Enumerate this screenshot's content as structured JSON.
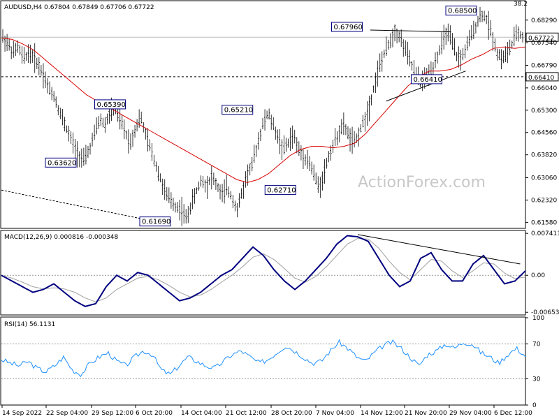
{
  "chart_data": [
    {
      "type": "candlestick",
      "title": "AUDUSD,H4  0.67804 0.67849 0.67706 0.67722",
      "corner_value": "38.2",
      "ylim": [
        0.6138,
        0.6891
      ],
      "y_ticks": [
        "0.68290",
        "0.67540",
        "0.66790",
        "0.66040",
        "0.65300",
        "0.64560",
        "0.63820",
        "0.63060",
        "0.62320",
        "0.61580"
      ],
      "y_tick_values": [
        0.6829,
        0.6754,
        0.6679,
        0.6604,
        0.653,
        0.6456,
        0.6382,
        0.6306,
        0.6232,
        0.6158
      ],
      "x_ticks": [
        "14 Sep 2022",
        "22 Sep 04:00",
        "29 Sep 12:00",
        "6 Oct 20:00",
        "14 Oct 04:00",
        "21 Oct 12:00",
        "28 Oct 20:00",
        "7 Nov 04:00",
        "14 Nov 12:00",
        "21 Nov 20:00",
        "29 Nov 04:00",
        "6 Dec 12:00"
      ],
      "current_price": "0.67722",
      "current_price_value": 0.67722,
      "level_line_value": 0.6641,
      "level_line_label": "0.66410",
      "price_labels": [
        {
          "text": "0.67960",
          "value": 0.6796
        },
        {
          "text": "0.68500",
          "value": 0.685
        },
        {
          "text": "0.65390",
          "value": 0.6539
        },
        {
          "text": "0.65210",
          "value": 0.6521
        },
        {
          "text": "0.66410",
          "value": 0.6641
        },
        {
          "text": "0.63620",
          "value": 0.6362
        },
        {
          "text": "0.62710",
          "value": 0.6271
        },
        {
          "text": "0.61690",
          "value": 0.6169
        }
      ],
      "price_path": [
        0.677,
        0.675,
        0.672,
        0.674,
        0.67,
        0.672,
        0.671,
        0.668,
        0.665,
        0.66,
        0.658,
        0.653,
        0.649,
        0.645,
        0.641,
        0.638,
        0.6362,
        0.64,
        0.645,
        0.65,
        0.648,
        0.652,
        0.6539,
        0.65,
        0.646,
        0.642,
        0.647,
        0.651,
        0.645,
        0.64,
        0.635,
        0.63,
        0.625,
        0.623,
        0.621,
        0.62,
        0.6169,
        0.622,
        0.626,
        0.63,
        0.628,
        0.631,
        0.628,
        0.625,
        0.627,
        0.624,
        0.62,
        0.626,
        0.632,
        0.635,
        0.642,
        0.648,
        0.6521,
        0.648,
        0.644,
        0.64,
        0.642,
        0.645,
        0.64,
        0.638,
        0.636,
        0.632,
        0.6271,
        0.632,
        0.638,
        0.642,
        0.646,
        0.648,
        0.644,
        0.642,
        0.646,
        0.65,
        0.655,
        0.662,
        0.668,
        0.672,
        0.676,
        0.6796,
        0.677,
        0.673,
        0.669,
        0.665,
        0.662,
        0.6641,
        0.666,
        0.67,
        0.674,
        0.679,
        0.676,
        0.671,
        0.67,
        0.674,
        0.678,
        0.682,
        0.685,
        0.683,
        0.678,
        0.672,
        0.67,
        0.672,
        0.675,
        0.679,
        0.6772
      ],
      "sma_path": [
        0.677,
        0.6765,
        0.675,
        0.673,
        0.67,
        0.667,
        0.664,
        0.661,
        0.658,
        0.656,
        0.654,
        0.652,
        0.65,
        0.648,
        0.646,
        0.644,
        0.642,
        0.64,
        0.638,
        0.636,
        0.634,
        0.632,
        0.63,
        0.629,
        0.63,
        0.632,
        0.635,
        0.638,
        0.64,
        0.641,
        0.641,
        0.6405,
        0.641,
        0.642,
        0.645,
        0.649,
        0.653,
        0.657,
        0.661,
        0.664,
        0.666,
        0.666,
        0.6665,
        0.668,
        0.67,
        0.6715,
        0.6735,
        0.674,
        0.6735,
        0.674
      ],
      "resistance_line": [
        [
          0.6796,
          0.0
        ],
        [
          0.679,
          1.0
        ]
      ],
      "support_line": [
        [
          0.656,
          0.0
        ],
        [
          0.666,
          1.0
        ]
      ],
      "long_support_line": [
        [
          0.6265,
          0.0
        ],
        [
          0.6169,
          1.0
        ]
      ]
    },
    {
      "type": "line",
      "title": "MACD(12,26,9) 0.000816 -0.000348",
      "ylim": [
        -0.007,
        0.0078
      ],
      "y_ticks": [
        "0.007411",
        "0.00",
        "-0.006532"
      ],
      "y_tick_values": [
        0.007411,
        0.0,
        -0.006532
      ],
      "macd": [
        0.0,
        -0.001,
        -0.002,
        -0.003,
        -0.0025,
        -0.0015,
        -0.003,
        -0.0045,
        -0.0055,
        -0.005,
        -0.002,
        0.0,
        -0.001,
        0.0005,
        0.0,
        -0.0015,
        -0.003,
        -0.0045,
        -0.004,
        -0.003,
        -0.0015,
        0.0,
        0.001,
        0.003,
        0.005,
        0.0035,
        0.001,
        -0.001,
        -0.0025,
        -0.001,
        0.001,
        0.003,
        0.0055,
        0.007,
        0.0068,
        0.006,
        0.003,
        0.0,
        -0.002,
        -0.001,
        0.003,
        0.004,
        0.001,
        -0.001,
        -0.001,
        0.002,
        0.0035,
        0.001,
        -0.0015,
        -0.001,
        0.0008
      ],
      "signal": [
        0.0,
        -0.0005,
        -0.0012,
        -0.002,
        -0.0024,
        -0.0022,
        -0.0024,
        -0.003,
        -0.004,
        -0.0047,
        -0.004,
        -0.0025,
        -0.0015,
        -0.0005,
        -0.0002,
        -0.0008,
        -0.0018,
        -0.003,
        -0.0038,
        -0.0035,
        -0.0025,
        -0.0012,
        0.0,
        0.0015,
        0.0032,
        0.0038,
        0.0028,
        0.0012,
        -0.0005,
        -0.0012,
        -0.0002,
        0.0015,
        0.0035,
        0.0055,
        0.0065,
        0.0064,
        0.0048,
        0.0025,
        0.0005,
        -0.0008,
        0.001,
        0.0028,
        0.0025,
        0.0008,
        -0.0004,
        0.0008,
        0.0022,
        0.002,
        0.0004,
        -0.0006,
        -0.0003
      ],
      "trend_line": [
        [
          0.0072,
          0.66
        ],
        [
          0.002,
          0.99
        ]
      ]
    },
    {
      "type": "line",
      "title": "RSI(14) 56.1131",
      "ylim": [
        0,
        100
      ],
      "y_ticks": [
        "100",
        "70",
        "30",
        "0"
      ],
      "y_tick_values": [
        100,
        70,
        30,
        0
      ],
      "rsi": [
        52,
        48,
        45,
        50,
        42,
        38,
        45,
        55,
        40,
        35,
        48,
        55,
        60,
        50,
        45,
        55,
        62,
        58,
        40,
        35,
        45,
        55,
        50,
        45,
        42,
        50,
        58,
        62,
        55,
        48,
        52,
        60,
        68,
        62,
        55,
        48,
        50,
        62,
        72,
        65,
        55,
        50,
        60,
        68,
        72,
        65,
        55,
        45,
        58,
        62,
        70,
        65,
        72,
        70,
        60,
        55,
        48,
        58,
        65,
        56
      ]
    }
  ],
  "watermark": "ActionForex.com"
}
